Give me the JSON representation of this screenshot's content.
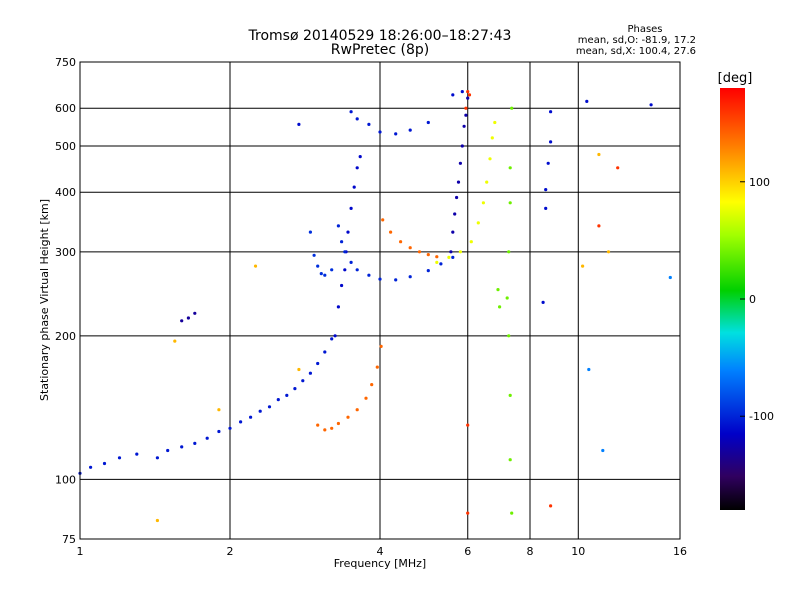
{
  "chart_data": {
    "type": "scatter",
    "title": "Tromsø 20140529 18:26:00–18:27:43",
    "subtitle": "RwPretec (8p)",
    "xlabel": "Frequency [MHz]",
    "ylabel": "Stationary phase Virtual Height [km]",
    "x_scale": "log",
    "y_scale": "log",
    "xlim": [
      1,
      16
    ],
    "ylim": [
      75,
      750
    ],
    "x_ticks": [
      1,
      2,
      4,
      6,
      8,
      10,
      16
    ],
    "y_ticks": [
      75,
      100,
      200,
      300,
      400,
      500,
      600,
      750
    ],
    "grid": true,
    "phase_stats": {
      "title": "Phases",
      "line_o": "mean, sd,O: -81.9, 17.2",
      "line_x": "mean, sd,X: 100.4, 27.6"
    },
    "colorbar": {
      "label": "[deg]",
      "range": [
        -180,
        180
      ],
      "ticks": [
        100,
        0,
        -100
      ],
      "colormap": "rainbow"
    },
    "series": [
      {
        "phase": -105,
        "points": [
          [
            1.0,
            103
          ],
          [
            1.05,
            106
          ],
          [
            1.12,
            108
          ],
          [
            1.2,
            111
          ],
          [
            1.3,
            113
          ],
          [
            1.43,
            111
          ],
          [
            1.5,
            115
          ],
          [
            1.6,
            117
          ],
          [
            1.7,
            119
          ],
          [
            1.8,
            122
          ],
          [
            1.9,
            126
          ],
          [
            2.0,
            128
          ],
          [
            2.1,
            132
          ],
          [
            2.2,
            135
          ],
          [
            2.3,
            139
          ],
          [
            2.4,
            142
          ],
          [
            2.5,
            147
          ],
          [
            2.6,
            150
          ],
          [
            2.7,
            155
          ],
          [
            2.8,
            161
          ],
          [
            2.9,
            167
          ],
          [
            3.0,
            175
          ],
          [
            3.1,
            185
          ],
          [
            3.2,
            197
          ]
        ]
      },
      {
        "phase": -112,
        "points": [
          [
            3.25,
            200
          ],
          [
            3.3,
            230
          ],
          [
            3.35,
            255
          ],
          [
            3.4,
            275
          ],
          [
            3.42,
            300
          ],
          [
            3.45,
            330
          ],
          [
            3.5,
            370
          ],
          [
            3.55,
            410
          ],
          [
            3.6,
            450
          ],
          [
            3.65,
            475
          ]
        ]
      },
      {
        "phase": -100,
        "points": [
          [
            3.3,
            340
          ],
          [
            3.35,
            315
          ],
          [
            3.4,
            300
          ],
          [
            3.5,
            285
          ],
          [
            3.6,
            275
          ],
          [
            3.8,
            268
          ],
          [
            4.0,
            263
          ],
          [
            4.3,
            262
          ],
          [
            4.6,
            266
          ],
          [
            5.0,
            274
          ],
          [
            5.3,
            283
          ],
          [
            5.6,
            292
          ]
        ]
      },
      {
        "phase": -125,
        "points": [
          [
            5.55,
            300
          ],
          [
            5.6,
            330
          ],
          [
            5.65,
            360
          ],
          [
            5.7,
            390
          ],
          [
            5.75,
            420
          ],
          [
            5.8,
            460
          ],
          [
            5.85,
            500
          ],
          [
            5.9,
            550
          ],
          [
            5.95,
            580
          ],
          [
            6.0,
            630
          ]
        ]
      },
      {
        "phase": -95,
        "points": [
          [
            2.9,
            330
          ],
          [
            2.95,
            295
          ],
          [
            3.0,
            280
          ],
          [
            3.05,
            270
          ],
          [
            3.1,
            268
          ],
          [
            3.2,
            275
          ]
        ]
      },
      {
        "phase": -105,
        "points": [
          [
            3.5,
            590
          ],
          [
            3.6,
            570
          ],
          [
            3.8,
            555
          ],
          [
            4.0,
            535
          ],
          [
            4.3,
            530
          ],
          [
            4.6,
            540
          ],
          [
            5.0,
            560
          ]
        ]
      },
      {
        "phase": 140,
        "points": [
          [
            3.0,
            130
          ],
          [
            3.1,
            127
          ],
          [
            3.2,
            128
          ],
          [
            3.3,
            131
          ],
          [
            3.45,
            135
          ],
          [
            3.6,
            140
          ],
          [
            3.75,
            148
          ],
          [
            3.85,
            158
          ],
          [
            3.95,
            172
          ],
          [
            4.02,
            190
          ]
        ]
      },
      {
        "phase": 140,
        "points": [
          [
            4.05,
            350
          ],
          [
            4.2,
            330
          ],
          [
            4.4,
            315
          ],
          [
            4.6,
            306
          ],
          [
            4.8,
            300
          ],
          [
            5.0,
            296
          ],
          [
            5.2,
            293
          ]
        ]
      },
      {
        "phase": 80,
        "points": [
          [
            5.2,
            285
          ],
          [
            5.5,
            292
          ],
          [
            5.8,
            300
          ],
          [
            6.1,
            315
          ],
          [
            6.3,
            345
          ],
          [
            6.45,
            380
          ],
          [
            6.55,
            420
          ],
          [
            6.65,
            470
          ],
          [
            6.72,
            520
          ],
          [
            6.8,
            560
          ]
        ]
      },
      {
        "phase": -130,
        "points": [
          [
            1.6,
            215
          ],
          [
            1.65,
            218
          ],
          [
            1.7,
            223
          ]
        ]
      },
      {
        "phase": -110,
        "points": [
          [
            2.75,
            555
          ],
          [
            5.6,
            640
          ],
          [
            5.85,
            650
          ],
          [
            8.8,
            590
          ],
          [
            8.8,
            510
          ],
          [
            8.7,
            460
          ],
          [
            8.6,
            405
          ],
          [
            8.6,
            370
          ],
          [
            10.4,
            620
          ],
          [
            14,
            610
          ],
          [
            8.5,
            235
          ]
        ]
      },
      {
        "phase": 40,
        "points": [
          [
            7.35,
            600
          ],
          [
            7.3,
            450
          ],
          [
            7.3,
            380
          ],
          [
            7.25,
            300
          ],
          [
            7.2,
            240
          ],
          [
            7.25,
            200
          ],
          [
            7.3,
            150
          ],
          [
            7.3,
            110
          ],
          [
            7.35,
            85
          ],
          [
            6.9,
            250
          ],
          [
            6.95,
            230
          ]
        ]
      },
      {
        "phase": 160,
        "points": [
          [
            6.0,
            650
          ],
          [
            6.05,
            640
          ],
          [
            5.95,
            600
          ],
          [
            6.0,
            130
          ],
          [
            6.0,
            85
          ],
          [
            11.0,
            340
          ],
          [
            12.0,
            450
          ],
          [
            8.8,
            88
          ]
        ]
      },
      {
        "phase": 110,
        "points": [
          [
            1.43,
            82
          ],
          [
            1.55,
            195
          ],
          [
            1.9,
            140
          ],
          [
            2.25,
            280
          ],
          [
            2.75,
            170
          ],
          [
            10.2,
            280
          ],
          [
            11.0,
            480
          ],
          [
            11.5,
            300
          ]
        ]
      },
      {
        "phase": -60,
        "points": [
          [
            15.3,
            265
          ],
          [
            10.5,
            170
          ],
          [
            11.2,
            115
          ]
        ]
      }
    ]
  }
}
